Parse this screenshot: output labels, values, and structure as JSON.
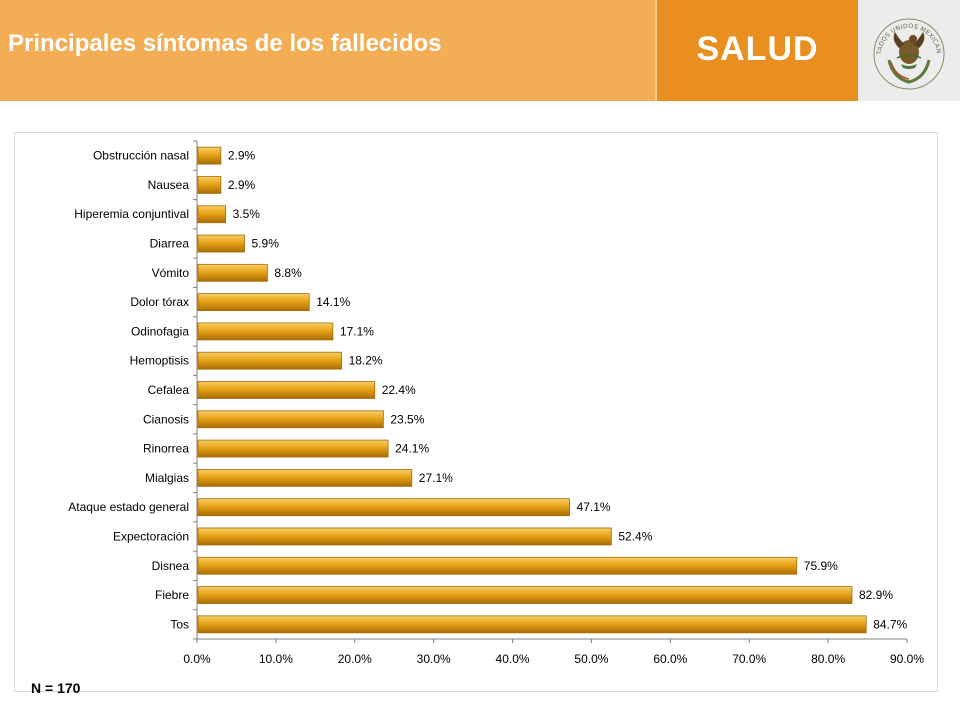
{
  "header": {
    "title": "Principales síntomas de los fallecidos",
    "brand": "SALUD",
    "seal_text": "ESTADOS UNIDOS MEXICANOS"
  },
  "colors": {
    "header_light": "#f3ad55",
    "header_dark": "#e98f1f",
    "bar_fill": "#e8a317",
    "bar_dark": "#a86d05"
  },
  "footnote": "N = 170",
  "chart_data": {
    "type": "bar",
    "orientation": "horizontal",
    "categories": [
      "Obstrucción nasal",
      "Nausea",
      "Hiperemia conjuntival",
      "Diarrea",
      "Vómito",
      "Dolor tórax",
      "Odinofagia",
      "Hemoptisis",
      "Cefalea",
      "Cianosis",
      "Rinorrea",
      "Mialgias",
      "Ataque estado general",
      "Expectoración",
      "Disnea",
      "Fiebre",
      "Tos"
    ],
    "values": [
      2.9,
      2.9,
      3.5,
      5.9,
      8.8,
      14.1,
      17.1,
      18.2,
      22.4,
      23.5,
      24.1,
      27.1,
      47.1,
      52.4,
      75.9,
      82.9,
      84.7
    ],
    "data_labels": [
      "2.9%",
      "2.9%",
      "3.5%",
      "5.9%",
      "8.8%",
      "14.1%",
      "17.1%",
      "18.2%",
      "22.4%",
      "23.5%",
      "24.1%",
      "27.1%",
      "47.1%",
      "52.4%",
      "75.9%",
      "82.9%",
      "84.7%"
    ],
    "xlim": [
      0,
      90
    ],
    "x_ticks": [
      "0.0%",
      "10.0%",
      "20.0%",
      "30.0%",
      "40.0%",
      "50.0%",
      "60.0%",
      "70.0%",
      "80.0%",
      "90.0%"
    ],
    "grid": false,
    "legend": "none"
  }
}
